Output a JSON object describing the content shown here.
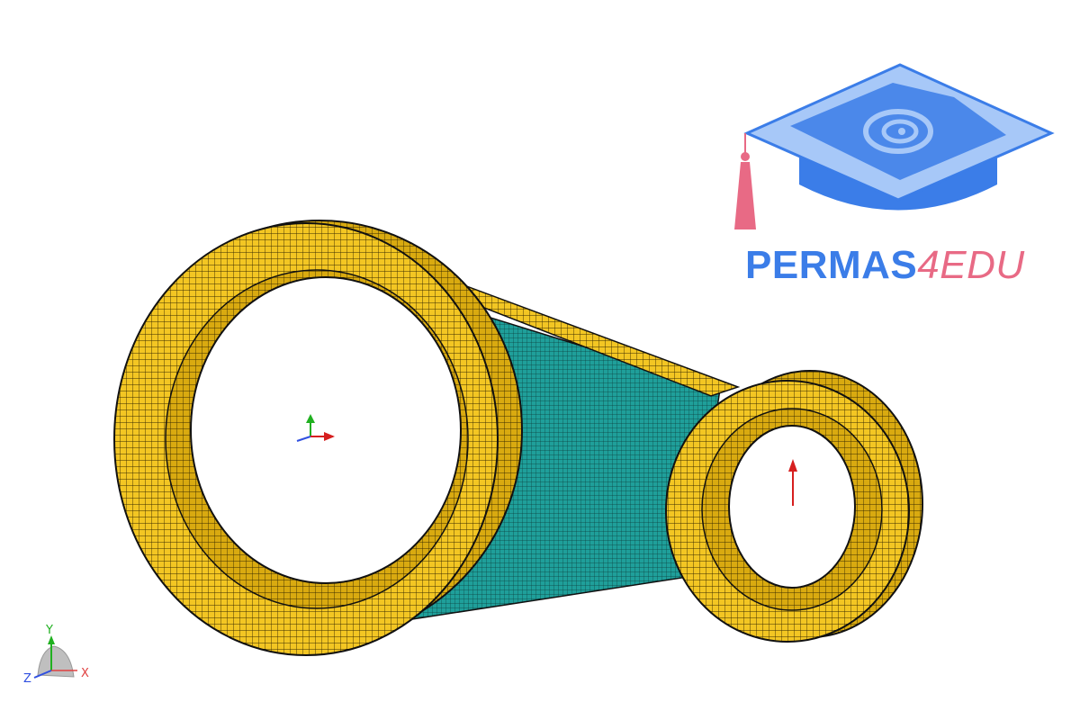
{
  "viewport": {
    "background": "#ffffff",
    "model": {
      "name": "connecting-rod-mesh",
      "surface_color": "#f3c623",
      "web_color": "#1f9f9a",
      "edge_color": "#111111"
    },
    "load_arrow_color": "#d61f1f"
  },
  "logo": {
    "text_main": "PERMAS",
    "text_accent": "4EDU",
    "main_color": "#3b7de8",
    "accent_color": "#e86a85"
  },
  "triad": {
    "y_label": "Y",
    "x_label": "X",
    "z_label": "Z",
    "x_color": "#e04040",
    "y_color": "#20b020",
    "z_color": "#3050e0"
  }
}
